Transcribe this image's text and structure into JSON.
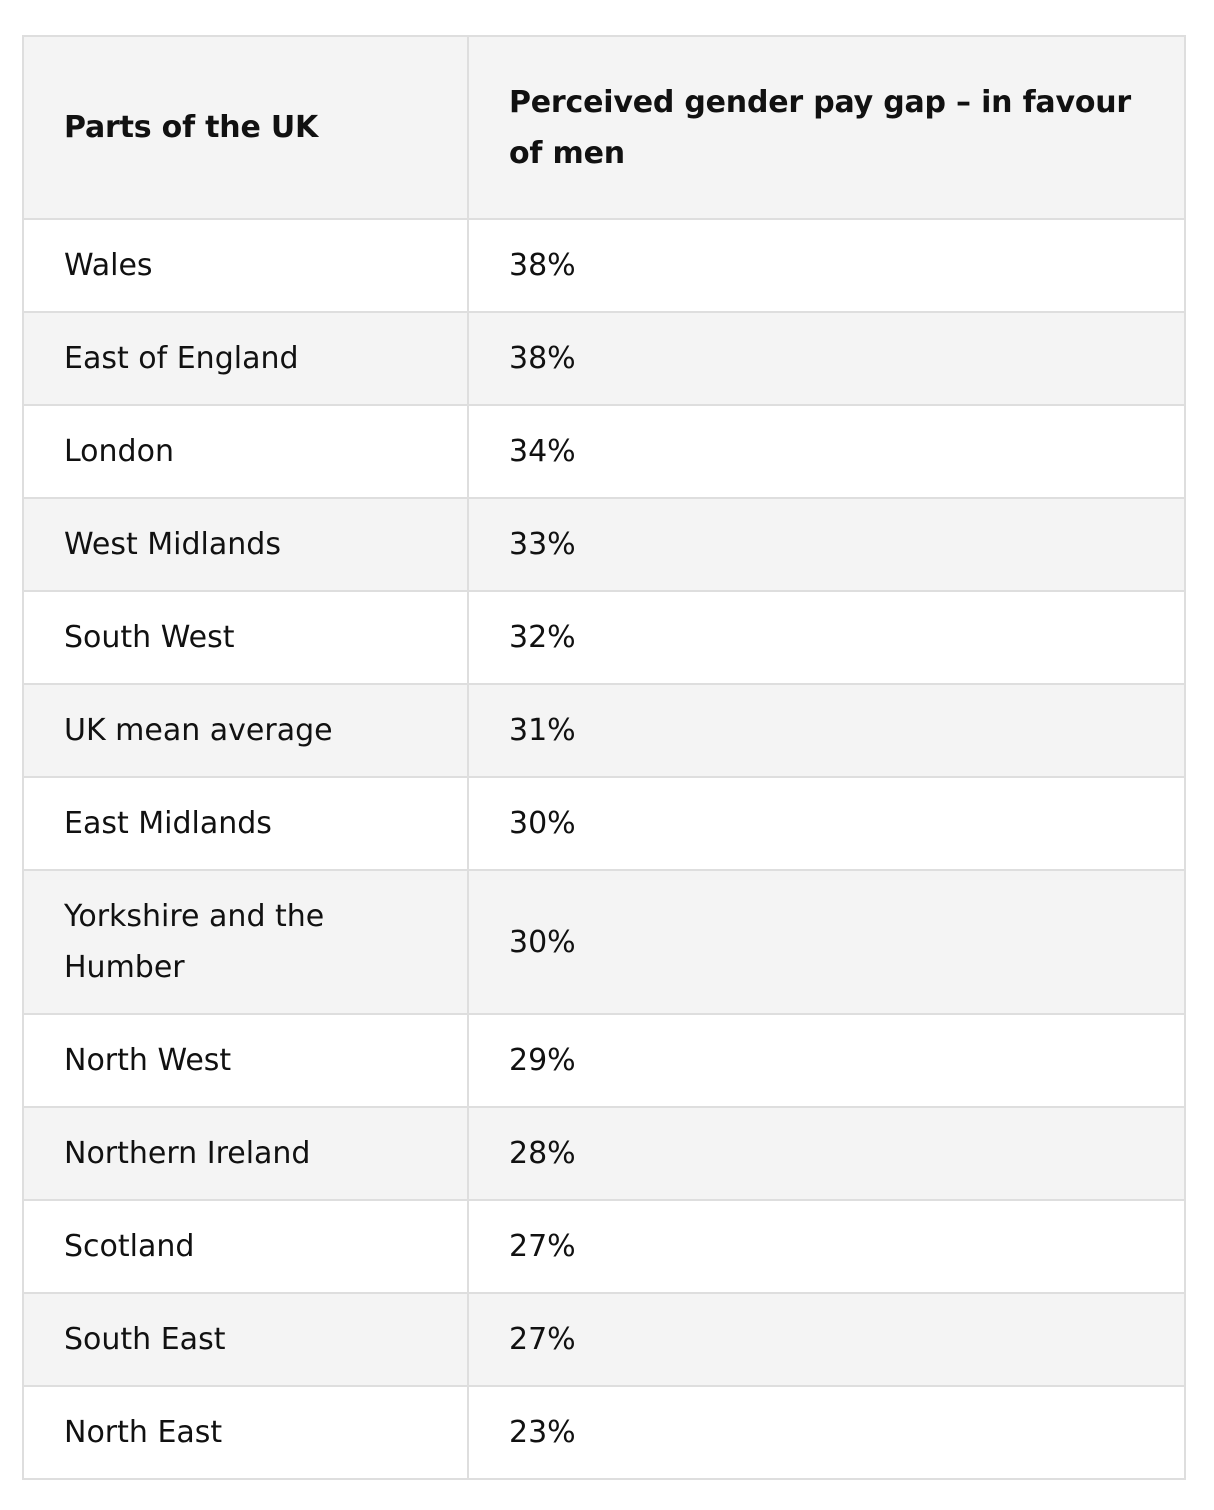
{
  "table": {
    "headers": [
      "Parts of the UK",
      "Perceived gender pay gap – in favour of men"
    ],
    "rows": [
      [
        "Wales",
        "38%"
      ],
      [
        "East of England",
        "38%"
      ],
      [
        "London",
        "34%"
      ],
      [
        "West Midlands",
        "33%"
      ],
      [
        "South West",
        "32%"
      ],
      [
        "UK mean average",
        "31%"
      ],
      [
        "East Midlands",
        "30%"
      ],
      [
        "Yorkshire and the Humber",
        "30%"
      ],
      [
        "North West",
        "29%"
      ],
      [
        "Northern Ireland",
        "28%"
      ],
      [
        "Scotland",
        "27%"
      ],
      [
        "South East",
        "27%"
      ],
      [
        "North East",
        "23%"
      ]
    ]
  }
}
